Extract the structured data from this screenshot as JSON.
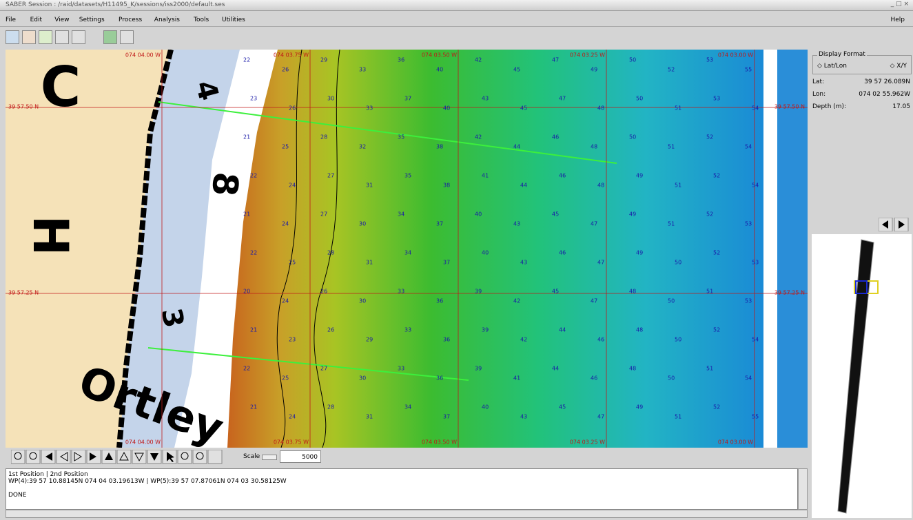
{
  "window": {
    "title": "SABER Session : /raid/datasets/H11495_K/sessions/iss2000/default.ses"
  },
  "menu": {
    "items": [
      "File",
      "Edit",
      "View",
      "Settings",
      "Process",
      "Analysis",
      "Tools",
      "Utilities"
    ],
    "help": "Help"
  },
  "map": {
    "lon_labels": [
      "074 04.00 W",
      "074 03.75 W",
      "074 03.50 W",
      "074 03.25 W",
      "074 03.00 W"
    ],
    "lat_labels": [
      "39 57.50 N",
      "39 57.25 N"
    ],
    "chart_text": [
      "C",
      "H",
      "4",
      "8",
      "3",
      "Ortley"
    ],
    "soundings": [
      [
        22,
        26,
        29,
        33,
        36,
        40,
        42,
        45,
        47,
        49,
        50,
        52,
        53,
        55
      ],
      [
        23,
        26,
        30,
        33,
        37,
        40,
        43,
        45,
        47,
        48,
        50,
        51,
        53,
        54
      ],
      [
        21,
        25,
        28,
        32,
        35,
        38,
        42,
        44,
        46,
        48,
        50,
        51,
        52,
        54
      ],
      [
        22,
        24,
        27,
        31,
        35,
        38,
        41,
        44,
        46,
        48,
        49,
        51,
        52,
        54
      ],
      [
        21,
        24,
        27,
        30,
        34,
        37,
        40,
        43,
        45,
        47,
        49,
        51,
        52,
        53
      ],
      [
        22,
        25,
        28,
        31,
        34,
        37,
        40,
        43,
        46,
        47,
        49,
        50,
        52,
        53
      ],
      [
        20,
        24,
        26,
        30,
        33,
        36,
        39,
        42,
        45,
        47,
        48,
        50,
        51,
        53
      ],
      [
        21,
        23,
        26,
        29,
        33,
        36,
        39,
        42,
        44,
        46,
        48,
        50,
        52,
        54
      ],
      [
        22,
        25,
        27,
        30,
        33,
        36,
        39,
        41,
        44,
        46,
        48,
        50,
        51,
        54
      ],
      [
        21,
        24,
        28,
        31,
        34,
        37,
        40,
        43,
        45,
        47,
        49,
        51,
        52,
        55
      ]
    ]
  },
  "display_format": {
    "title": "Display Format",
    "options": [
      "Lat/Lon",
      "X/Y"
    ],
    "fields": [
      {
        "label": "Lat:",
        "value": "39 57 26.089N"
      },
      {
        "label": "Lon:",
        "value": "074 02 55.962W"
      },
      {
        "label": "Depth (m):",
        "value": "17.05"
      }
    ]
  },
  "toolbar": {
    "scale_label": "Scale",
    "scale_value": 5000
  },
  "status": {
    "header": "1st Position | 2nd Position",
    "line": "WP(4):39 57 10.88145N 074 04 03.19613W | WP(5):39 57 07.87061N 074 03 30.58125W",
    "result": "DONE"
  }
}
